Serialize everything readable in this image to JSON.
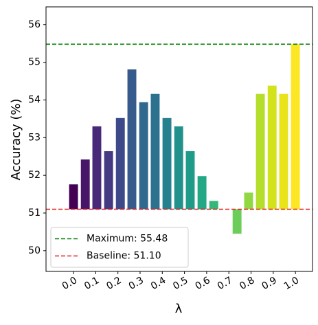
{
  "chart_data": {
    "type": "bar",
    "xlabel": "λ",
    "ylabel": "Accuracy (%)",
    "x": [
      0,
      0.053,
      0.105,
      0.158,
      0.211,
      0.263,
      0.316,
      0.368,
      0.421,
      0.474,
      0.526,
      0.579,
      0.632,
      0.684,
      0.737,
      0.789,
      0.842,
      0.895,
      0.947,
      1
    ],
    "values": [
      51.76,
      52.42,
      53.3,
      52.64,
      53.52,
      54.81,
      53.94,
      54.16,
      53.52,
      53.3,
      52.64,
      51.98,
      51.32,
      null,
      50.45,
      51.54,
      54.16,
      54.38,
      54.16,
      55.48
    ],
    "colors": [
      "#440154",
      "#481668",
      "#482878",
      "#443983",
      "#3e4989",
      "#375a8c",
      "#31688e",
      "#2c728e",
      "#26818e",
      "#21918c",
      "#1e9c89",
      "#22a884",
      "#35b779",
      "#4ac16d",
      "#6ccd5a",
      "#90d743",
      "#b5de2b",
      "#d2e21b",
      "#e8e419",
      "#fde725"
    ],
    "bar_base": 51.1,
    "xlim": [
      -0.124,
      1.077
    ],
    "xticks": [
      {
        "value": 0,
        "label": "0.0"
      },
      {
        "value": 0.1,
        "label": "0.1"
      },
      {
        "value": 0.2,
        "label": "0.2"
      },
      {
        "value": 0.3,
        "label": "0.3"
      },
      {
        "value": 0.4,
        "label": "0.4"
      },
      {
        "value": 0.5,
        "label": "0.5"
      },
      {
        "value": 0.6,
        "label": "0.6"
      },
      {
        "value": 0.7,
        "label": "0.7"
      },
      {
        "value": 0.8,
        "label": "0.8"
      },
      {
        "value": 0.9,
        "label": "0.9"
      },
      {
        "value": 1,
        "label": "1.0"
      }
    ],
    "ylim": [
      49.45,
      56.47
    ],
    "yticks": [
      50,
      51,
      52,
      53,
      54,
      55,
      56
    ],
    "reference_lines": [
      {
        "name": "Maximum: 55.48",
        "value": 55.48,
        "color": "#008000"
      },
      {
        "name": "Baseline: 51.10",
        "value": 51.1,
        "color": "#e41a1c"
      }
    ],
    "legend": "lower left"
  }
}
